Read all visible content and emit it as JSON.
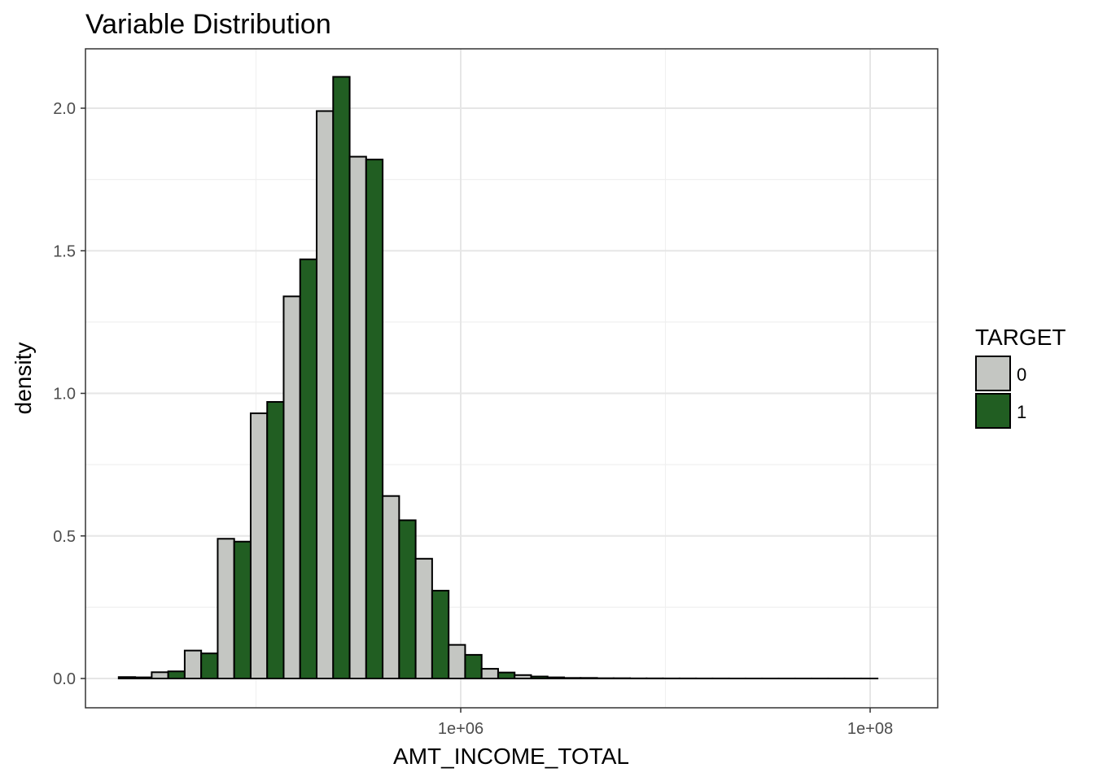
{
  "chart_data": {
    "type": "bar",
    "title": "Variable Distribution",
    "xlabel": "AMT_INCOME_TOTAL",
    "ylabel": "density",
    "x_scale": "log10",
    "x_ticks": [
      {
        "value": 1000000,
        "label": "1e+06"
      },
      {
        "value": 100000000,
        "label": "1e+08"
      }
    ],
    "y_ticks": [
      {
        "value": 0.0,
        "label": "0.0"
      },
      {
        "value": 0.5,
        "label": "0.5"
      },
      {
        "value": 1.0,
        "label": "1.0"
      },
      {
        "value": 1.5,
        "label": "1.5"
      },
      {
        "value": 2.0,
        "label": "2.0"
      }
    ],
    "ylim": [
      -0.1,
      2.2
    ],
    "grid": true,
    "legend": {
      "title": "TARGET",
      "position": "right"
    },
    "bin_centers": [
      25700,
      37250,
      53990,
      78250,
      113400,
      164300,
      238200,
      345200,
      500300,
      725100,
      1051000,
      1523000,
      2207000,
      3199000,
      4636000,
      6719000,
      9738000,
      14110000,
      20450000,
      29640000,
      42960000,
      62270000,
      90250000
    ],
    "series": [
      {
        "name": "0",
        "color": "#c4c6c2",
        "values": [
          0.005,
          0.022,
          0.098,
          0.49,
          0.93,
          1.34,
          1.99,
          1.83,
          0.64,
          0.42,
          0.118,
          0.034,
          0.012,
          0.004,
          0.002,
          0.001,
          0.0005,
          0.0003,
          0.0002,
          0.0001,
          0.0001,
          0.0001,
          0.0001
        ]
      },
      {
        "name": "1",
        "color": "#215e22",
        "values": [
          0.004,
          0.025,
          0.088,
          0.48,
          0.97,
          1.47,
          2.11,
          1.82,
          0.555,
          0.308,
          0.083,
          0.021,
          0.007,
          0.002,
          0.001,
          0.0005,
          0.0003,
          0.0002,
          0.0001,
          0.0001,
          0.0001,
          0.0001,
          0.0001
        ]
      }
    ]
  }
}
